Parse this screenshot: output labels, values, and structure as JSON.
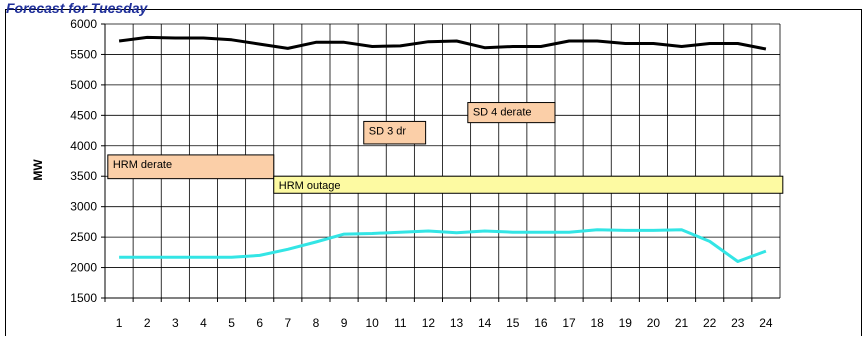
{
  "header": {
    "title": "Forecast for Tuesday"
  },
  "chart_data": {
    "type": "line",
    "ylabel": "MW",
    "xlabel": "",
    "ylim": [
      1500,
      6000
    ],
    "ytick_step": 500,
    "x": [
      1,
      2,
      3,
      4,
      5,
      6,
      7,
      8,
      9,
      10,
      11,
      12,
      13,
      14,
      15,
      16,
      17,
      18,
      19,
      20,
      21,
      22,
      23,
      24
    ],
    "grid": true,
    "series": [
      {
        "color": "#000000",
        "values": [
          5720,
          5780,
          5770,
          5770,
          5740,
          5670,
          5600,
          5700,
          5700,
          5630,
          5640,
          5710,
          5720,
          5610,
          5630,
          5630,
          5720,
          5720,
          5680,
          5680,
          5630,
          5680,
          5680,
          5590
        ]
      },
      {
        "color": "#33e5e5",
        "values": [
          2170,
          2170,
          2170,
          2170,
          2170,
          2200,
          2300,
          2420,
          2550,
          2560,
          2580,
          2600,
          2570,
          2600,
          2580,
          2580,
          2580,
          2620,
          2610,
          2610,
          2620,
          2430,
          2100,
          2270
        ]
      }
    ],
    "annotations": [
      {
        "label": "HRM derate",
        "x_start": 0.6,
        "x_end": 6.5,
        "y_low": 3460,
        "y_high": 3850,
        "color": "#fbcfa8"
      },
      {
        "label": "HRM outage",
        "x_start": 6.5,
        "x_end": 24.6,
        "y_low": 3220,
        "y_high": 3500,
        "color": "#fdfaa2"
      },
      {
        "label": "SD 3 dr",
        "x_start": 9.7,
        "x_end": 11.9,
        "y_low": 4030,
        "y_high": 4400,
        "color": "#fbcfa8"
      },
      {
        "label": "SD 4 derate",
        "x_start": 13.4,
        "x_end": 16.5,
        "y_low": 4380,
        "y_high": 4710,
        "color": "#fbcfa8"
      }
    ]
  }
}
